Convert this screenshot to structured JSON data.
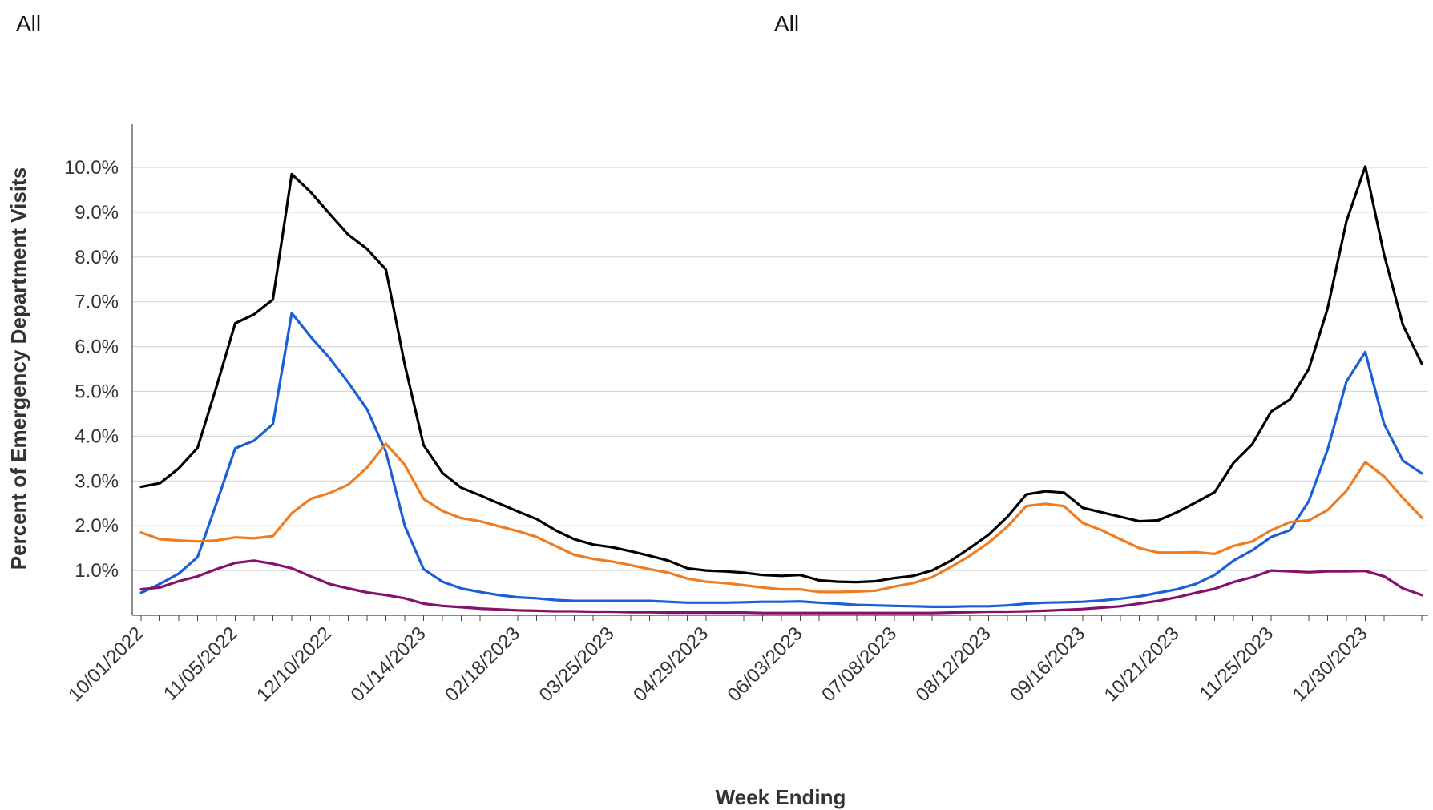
{
  "filters": {
    "left_label": "All",
    "center_label": "All"
  },
  "chart_data": {
    "type": "line",
    "xlabel": "Week Ending",
    "ylabel": "Percent of Emergency Department Visits",
    "x_tick_labels": [
      "10/01/2022",
      "11/05/2022",
      "12/10/2022",
      "01/14/2023",
      "02/18/2023",
      "03/25/2023",
      "04/29/2023",
      "06/03/2023",
      "07/08/2023",
      "08/12/2023",
      "09/16/2023",
      "10/21/2023",
      "11/25/2023",
      "12/30/2023"
    ],
    "y_tick_labels": [
      "1.0%",
      "2.0%",
      "3.0%",
      "4.0%",
      "5.0%",
      "6.0%",
      "7.0%",
      "8.0%",
      "9.0%",
      "10.0%"
    ],
    "y_ticks": [
      1,
      2,
      3,
      4,
      5,
      6,
      7,
      8,
      9,
      10
    ],
    "ylim": [
      0,
      11
    ],
    "grid": true,
    "week_start": "10/01/2022",
    "series": [
      {
        "color": "#000000",
        "values": [
          2.87,
          2.95,
          3.28,
          3.74,
          5.1,
          6.52,
          6.72,
          7.05,
          9.85,
          9.45,
          8.97,
          8.5,
          8.18,
          7.72,
          5.6,
          3.8,
          3.18,
          2.85,
          2.68,
          2.5,
          2.32,
          2.15,
          1.9,
          1.7,
          1.58,
          1.52,
          1.43,
          1.33,
          1.22,
          1.05,
          1.0,
          0.98,
          0.95,
          0.9,
          0.88,
          0.9,
          0.78,
          0.75,
          0.74,
          0.76,
          0.83,
          0.88,
          1.0,
          1.22,
          1.5,
          1.8,
          2.2,
          2.7,
          2.77,
          2.74,
          2.4,
          2.3,
          2.2,
          2.1,
          2.12,
          2.3,
          2.52,
          2.75,
          3.4,
          3.82,
          4.55,
          4.82,
          5.5,
          6.85,
          8.8,
          10.02,
          8.05,
          6.48,
          5.62
        ]
      },
      {
        "color": "#1a5fd6",
        "values": [
          0.5,
          0.7,
          0.93,
          1.3,
          2.5,
          3.73,
          3.9,
          4.27,
          6.75,
          6.22,
          5.75,
          5.2,
          4.6,
          3.65,
          2.0,
          1.03,
          0.75,
          0.6,
          0.52,
          0.45,
          0.4,
          0.38,
          0.34,
          0.32,
          0.32,
          0.32,
          0.32,
          0.32,
          0.3,
          0.28,
          0.28,
          0.28,
          0.29,
          0.3,
          0.3,
          0.31,
          0.28,
          0.26,
          0.23,
          0.22,
          0.21,
          0.2,
          0.19,
          0.19,
          0.2,
          0.2,
          0.22,
          0.26,
          0.28,
          0.29,
          0.3,
          0.33,
          0.37,
          0.42,
          0.5,
          0.58,
          0.7,
          0.9,
          1.22,
          1.45,
          1.75,
          1.9,
          2.55,
          3.7,
          5.22,
          5.88,
          4.27,
          3.45,
          3.17
        ]
      },
      {
        "color": "#f07c22",
        "values": [
          1.85,
          1.7,
          1.67,
          1.65,
          1.67,
          1.74,
          1.72,
          1.77,
          2.28,
          2.6,
          2.73,
          2.92,
          3.3,
          3.83,
          3.36,
          2.6,
          2.33,
          2.17,
          2.1,
          1.99,
          1.88,
          1.75,
          1.55,
          1.35,
          1.26,
          1.2,
          1.12,
          1.03,
          0.95,
          0.82,
          0.75,
          0.72,
          0.67,
          0.62,
          0.58,
          0.58,
          0.52,
          0.52,
          0.53,
          0.55,
          0.64,
          0.72,
          0.85,
          1.08,
          1.33,
          1.62,
          1.98,
          2.44,
          2.49,
          2.44,
          2.06,
          1.9,
          1.7,
          1.5,
          1.4,
          1.4,
          1.41,
          1.37,
          1.55,
          1.65,
          1.9,
          2.08,
          2.12,
          2.35,
          2.78,
          3.42,
          3.1,
          2.62,
          2.18
        ]
      },
      {
        "color": "#86116a",
        "values": [
          0.58,
          0.62,
          0.76,
          0.87,
          1.03,
          1.17,
          1.22,
          1.15,
          1.05,
          0.87,
          0.7,
          0.6,
          0.51,
          0.45,
          0.38,
          0.26,
          0.21,
          0.18,
          0.15,
          0.13,
          0.11,
          0.1,
          0.09,
          0.09,
          0.08,
          0.08,
          0.07,
          0.07,
          0.06,
          0.06,
          0.06,
          0.06,
          0.06,
          0.05,
          0.05,
          0.05,
          0.05,
          0.05,
          0.05,
          0.05,
          0.05,
          0.05,
          0.05,
          0.06,
          0.07,
          0.08,
          0.08,
          0.09,
          0.1,
          0.12,
          0.14,
          0.17,
          0.2,
          0.26,
          0.32,
          0.4,
          0.5,
          0.59,
          0.74,
          0.85,
          1.0,
          0.98,
          0.96,
          0.98,
          0.98,
          0.99,
          0.87,
          0.6,
          0.45
        ]
      }
    ]
  }
}
